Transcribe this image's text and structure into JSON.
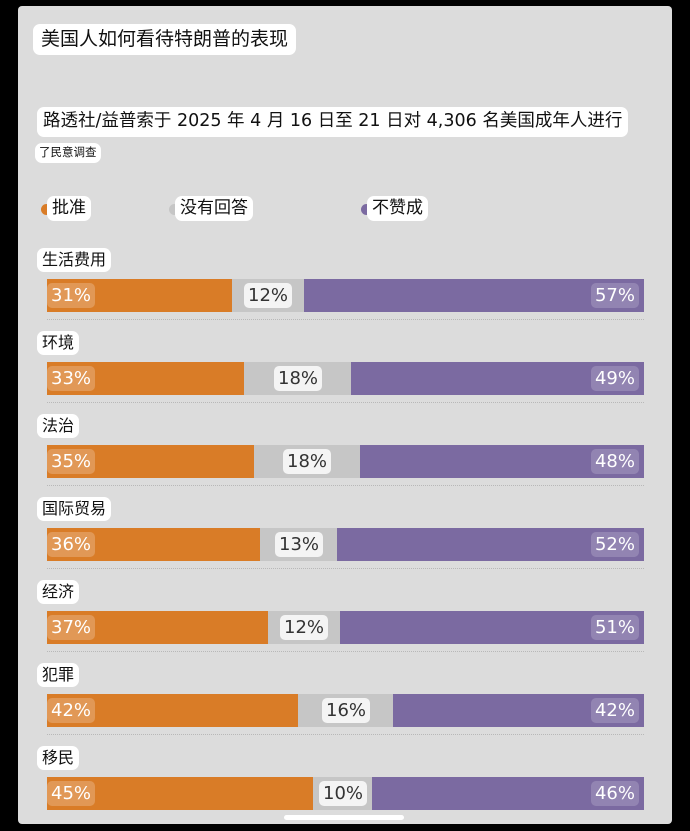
{
  "title": "美国人如何看待特朗普的表现",
  "subtitle": "路透社/益普索于 2025 年 4 月 16 日至 21 日对 4,306 名美国成年人进行",
  "subtitle_cont": "了民意调查",
  "legend": [
    {
      "label": "批准",
      "color": "#d97c27"
    },
    {
      "label": "没有回答",
      "color": "#c6c6c6"
    },
    {
      "label": "不赞成",
      "color": "#7b6aa1"
    }
  ],
  "chart_data": {
    "type": "bar",
    "stacked": true,
    "orientation": "horizontal",
    "categories": [
      "生活费用",
      "环境",
      "法治",
      "国际贸易",
      "经济",
      "犯罪",
      "移民"
    ],
    "series": [
      {
        "name": "批准",
        "values": [
          31,
          33,
          35,
          36,
          37,
          42,
          45
        ],
        "labels": [
          "31%",
          "33%",
          "35%",
          "36%",
          "37%",
          "42%",
          "45%"
        ],
        "color": "#d97c27"
      },
      {
        "name": "没有回答",
        "values": [
          12,
          18,
          18,
          13,
          12,
          16,
          10
        ],
        "labels": [
          "12%",
          "18%",
          "18%",
          "13%",
          "12%",
          "16%",
          "10%"
        ],
        "color": "#c6c6c6"
      },
      {
        "name": "不赞成",
        "values": [
          57,
          49,
          48,
          52,
          51,
          42,
          46
        ],
        "labels": [
          "57%",
          "49%",
          "48%",
          "52%",
          "51%",
          "42%",
          "46%"
        ],
        "color": "#7b6aa1"
      }
    ],
    "xlim": [
      0,
      100
    ],
    "legend_position": "top",
    "grid": false
  }
}
